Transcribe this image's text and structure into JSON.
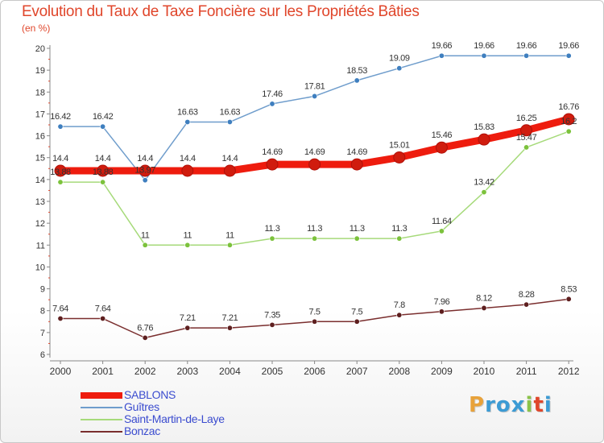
{
  "title": "Evolution du Taux de Taxe Foncière sur les Propriétés Bâties",
  "subtitle": "(en %)",
  "brand": {
    "text": "Proxiti",
    "letters": [
      "P",
      "r",
      "o",
      "x",
      "i",
      "t",
      "i"
    ],
    "colors": [
      "#e8a23a",
      "#3c9bd4",
      "#3c9bd4",
      "#3c9bd4",
      "#8bc34a",
      "#e0462b",
      "#3c9bd4"
    ]
  },
  "chart_data": {
    "type": "line",
    "title": "Evolution du Taux de Taxe Foncière sur les Propriétés Bâties",
    "ylabel": "(en %)",
    "xlabel": "",
    "x": [
      "2000",
      "2001",
      "2002",
      "2003",
      "2004",
      "2005",
      "2006",
      "2007",
      "2008",
      "2009",
      "2010",
      "2011",
      "2012"
    ],
    "ylim": [
      6,
      20
    ],
    "yticks": [
      "6",
      "7",
      "8",
      "9",
      "10",
      "11",
      "12",
      "13",
      "14",
      "15",
      "16",
      "17",
      "18",
      "19",
      "20"
    ],
    "grid": false,
    "legend_position": "bottom-left",
    "series": [
      {
        "name": "SABLONS",
        "color": "#ee1c0e",
        "point_color": "#d01c0e",
        "emphasis": true,
        "values": [
          14.4,
          14.4,
          14.4,
          14.4,
          14.4,
          14.69,
          14.69,
          14.69,
          15.01,
          15.46,
          15.83,
          16.25,
          16.76
        ],
        "labels": [
          "14.4",
          "14.4",
          "14.4",
          "14.4",
          "14.4",
          "14.69",
          "14.69",
          "14.69",
          "15.01",
          "15.46",
          "15.83",
          "16.25",
          "16.76"
        ]
      },
      {
        "name": "Guîtres",
        "color": "#6f9dcc",
        "point_color": "#3f7fbf",
        "emphasis": false,
        "values": [
          16.42,
          16.42,
          13.97,
          16.63,
          16.63,
          17.46,
          17.81,
          18.53,
          19.09,
          19.66,
          19.66,
          19.66,
          19.66
        ],
        "labels": [
          "16.42",
          "16.42",
          "13.97",
          "16.63",
          "16.63",
          "17.46",
          "17.81",
          "18.53",
          "19.09",
          "19.66",
          "19.66",
          "19.66",
          "19.66"
        ]
      },
      {
        "name": "Saint-Martin-de-Laye",
        "color": "#a6da7a",
        "point_color": "#7cc23c",
        "emphasis": false,
        "values": [
          13.88,
          13.88,
          11,
          11,
          11,
          11.3,
          11.3,
          11.3,
          11.3,
          11.64,
          13.42,
          15.47,
          16.2
        ],
        "labels": [
          "13.88",
          "13.88",
          "11",
          "11",
          "11",
          "11.3",
          "11.3",
          "11.3",
          "11.3",
          "11.64",
          "13.42",
          "15.47",
          "16.2"
        ]
      },
      {
        "name": "Bonzac",
        "color": "#7a2e2e",
        "point_color": "#5e1f1f",
        "emphasis": false,
        "values": [
          7.64,
          7.64,
          6.76,
          7.21,
          7.21,
          7.35,
          7.5,
          7.5,
          7.8,
          7.96,
          8.12,
          8.28,
          8.53
        ],
        "labels": [
          "7.64",
          "7.64",
          "6.76",
          "7.21",
          "7.21",
          "7.35",
          "7.5",
          "7.5",
          "7.8",
          "7.96",
          "8.12",
          "8.28",
          "8.53"
        ]
      }
    ]
  }
}
